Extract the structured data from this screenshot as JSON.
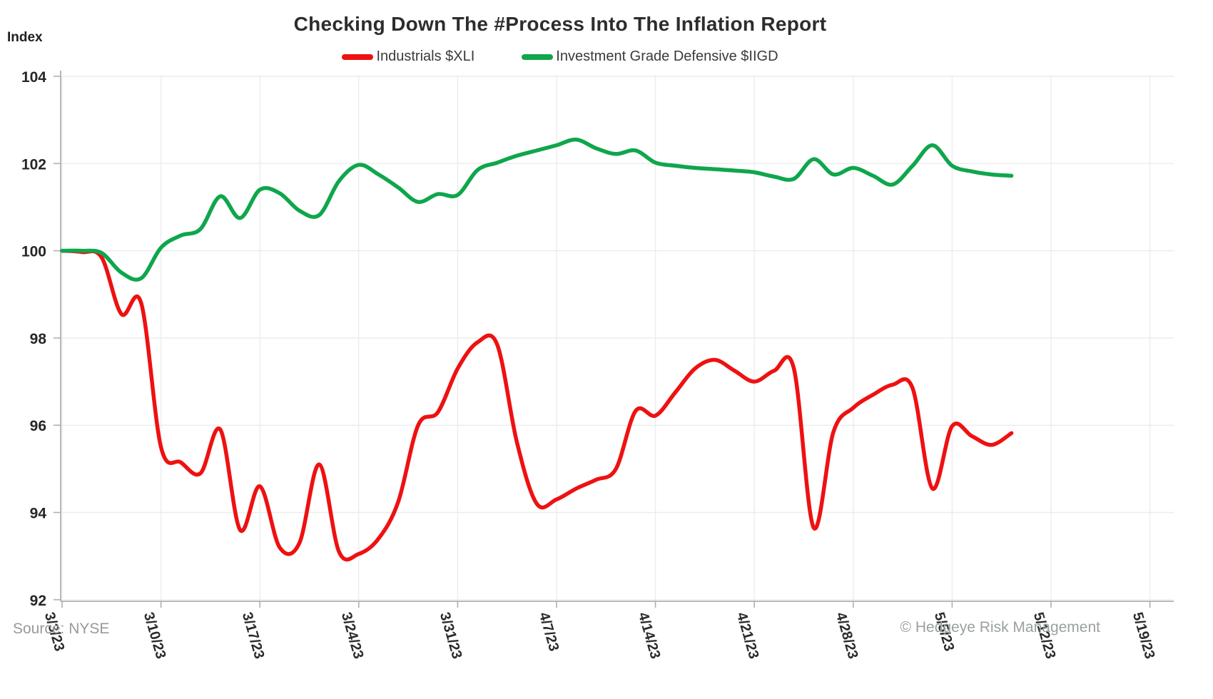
{
  "title": "Checking Down The #Process Into The Inflation Report",
  "y_axis_title": "Index",
  "source_note": "Source: NYSE",
  "copyright_note": "© Hedgeye Risk Management",
  "colors": {
    "xli_red": "#ee1111",
    "iigd_green": "#0fa64c",
    "gridline": "#ececec",
    "axis_line": "#b0b0b0",
    "tick_mark": "#b0b0b0"
  },
  "legend": [
    {
      "label": "Industrials $XLI",
      "color": "#ee1111"
    },
    {
      "label": "Investment Grade Defensive $IIGD",
      "color": "#0fa64c"
    }
  ],
  "chart_data": {
    "type": "line",
    "title": "Checking Down The #Process Into The Inflation Report",
    "ylabel": "Index",
    "ylim": [
      92,
      104
    ],
    "y_ticks": [
      92,
      94,
      96,
      98,
      100,
      102,
      104
    ],
    "grid": true,
    "legend_position": "top",
    "x": [
      "3/3/23",
      "3/6/23",
      "3/7/23",
      "3/8/23",
      "3/9/23",
      "3/10/23",
      "3/13/23",
      "3/14/23",
      "3/15/23",
      "3/16/23",
      "3/17/23",
      "3/20/23",
      "3/21/23",
      "3/22/23",
      "3/23/23",
      "3/24/23",
      "3/27/23",
      "3/28/23",
      "3/29/23",
      "3/30/23",
      "3/31/23",
      "4/3/23",
      "4/4/23",
      "4/5/23",
      "4/6/23",
      "4/7/23",
      "4/10/23",
      "4/11/23",
      "4/12/23",
      "4/13/23",
      "4/14/23",
      "4/17/23",
      "4/18/23",
      "4/19/23",
      "4/20/23",
      "4/21/23",
      "4/24/23",
      "4/25/23",
      "4/26/23",
      "4/27/23",
      "4/28/23",
      "5/1/23",
      "5/2/23",
      "5/3/23",
      "5/4/23",
      "5/5/23",
      "5/8/23",
      "5/9/23",
      "5/10/23"
    ],
    "x_tick_labels": [
      "3/3/23",
      "3/10/23",
      "3/17/23",
      "3/24/23",
      "3/31/23",
      "4/7/23",
      "4/14/23",
      "4/21/23",
      "4/28/23",
      "5/5/23",
      "5/12/23",
      "5/19/23"
    ],
    "x_tick_day_indices": [
      0,
      5,
      10,
      15,
      20,
      25,
      30,
      35,
      40,
      45,
      50,
      55
    ],
    "series": [
      {
        "name": "Industrials $XLI",
        "color": "#ee1111",
        "values": [
          100.0,
          99.97,
          99.85,
          98.55,
          98.8,
          95.5,
          95.15,
          94.9,
          95.9,
          93.6,
          94.6,
          93.2,
          93.3,
          95.1,
          93.1,
          93.05,
          93.4,
          94.25,
          96.0,
          96.3,
          97.3,
          97.9,
          97.85,
          95.6,
          94.2,
          94.3,
          94.55,
          94.75,
          95.0,
          96.33,
          96.22,
          96.75,
          97.3,
          97.5,
          97.25,
          97.0,
          97.25,
          97.3,
          93.65,
          95.85,
          96.4,
          96.7,
          96.93,
          96.85,
          94.55,
          95.98,
          95.75,
          95.55,
          95.82
        ]
      },
      {
        "name": "Investment Grade Defensive $IIGD",
        "color": "#0fa64c",
        "values": [
          100.0,
          100.0,
          99.95,
          99.5,
          99.37,
          100.07,
          100.35,
          100.5,
          101.25,
          100.75,
          101.4,
          101.32,
          100.92,
          100.82,
          101.6,
          101.97,
          101.75,
          101.45,
          101.12,
          101.3,
          101.28,
          101.85,
          102.02,
          102.18,
          102.3,
          102.42,
          102.55,
          102.35,
          102.22,
          102.3,
          102.02,
          101.95,
          101.9,
          101.87,
          101.84,
          101.8,
          101.7,
          101.65,
          102.1,
          101.75,
          101.9,
          101.72,
          101.52,
          101.95,
          102.42,
          101.95,
          101.82,
          101.75,
          101.72
        ]
      }
    ]
  }
}
